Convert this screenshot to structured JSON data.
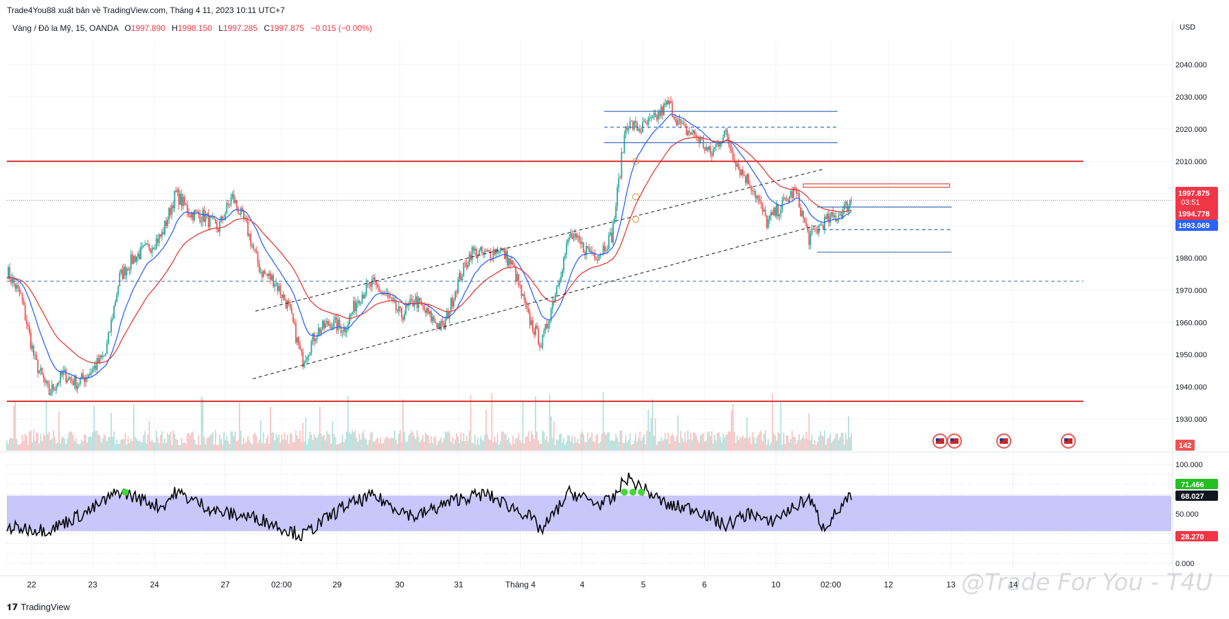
{
  "header": {
    "publisher_line": "Trade4You88 xuất bản về TradingView.com, Tháng 4 11, 2023 10:11 UTC+7"
  },
  "legend": {
    "symbol": "Vàng / Đô la Mỹ, 15, OANDA",
    "o_label": "O",
    "o_value": "1997.890",
    "h_label": "H",
    "h_value": "1998.150",
    "l_label": "L",
    "l_value": "1997.285",
    "c_label": "C",
    "c_value": "1997.875",
    "change": "−0.015 (−0.00%)"
  },
  "currency": "USD",
  "watermark": "@Trade For You - T4U",
  "brand": "TradingView",
  "colors": {
    "up": "#26a69a",
    "down": "#ef5350",
    "ema_fast": "#2962ff",
    "ema_slow": "#e53935",
    "level_red": "#d32f2f",
    "level_blue": "#3f6fb5",
    "rsi_band": "#c9c6fb",
    "rsi_line": "#000000"
  },
  "chart_data": [
    {
      "type": "candlestick",
      "title": "",
      "instrument": "XAUUSD",
      "timeframe": "15",
      "ylim": [
        1927,
        2046
      ],
      "y_ticks": [
        "2040.000",
        "2030.000",
        "2020.000",
        "2010.000",
        "2000.000",
        "1990.000",
        "1980.000",
        "1970.000",
        "1960.000",
        "1950.000",
        "1940.000",
        "1930.000"
      ],
      "x_ticks": [
        "22",
        "23",
        "24",
        "27",
        "02:00",
        "29",
        "30",
        "31",
        "Tháng 4",
        "4",
        "5",
        "6",
        "10",
        "02:00",
        "12",
        "13",
        "14"
      ],
      "price_path": [
        {
          "t": 0,
          "p": 1976
        },
        {
          "t": 1,
          "p": 1968
        },
        {
          "t": 2,
          "p": 1948
        },
        {
          "t": 3,
          "p": 1938
        },
        {
          "t": 4,
          "p": 1944
        },
        {
          "t": 5,
          "p": 1941
        },
        {
          "t": 6,
          "p": 1945
        },
        {
          "t": 7,
          "p": 1950
        },
        {
          "t": 8,
          "p": 1974
        },
        {
          "t": 9,
          "p": 1980
        },
        {
          "t": 10,
          "p": 1983
        },
        {
          "t": 11,
          "p": 1987
        },
        {
          "t": 12,
          "p": 2000
        },
        {
          "t": 13,
          "p": 1994
        },
        {
          "t": 14,
          "p": 1993
        },
        {
          "t": 15,
          "p": 1989
        },
        {
          "t": 16,
          "p": 1999
        },
        {
          "t": 17,
          "p": 1990
        },
        {
          "t": 18,
          "p": 1976
        },
        {
          "t": 19,
          "p": 1973
        },
        {
          "t": 20,
          "p": 1965
        },
        {
          "t": 21,
          "p": 1948
        },
        {
          "t": 22,
          "p": 1957
        },
        {
          "t": 23,
          "p": 1960
        },
        {
          "t": 24,
          "p": 1958
        },
        {
          "t": 25,
          "p": 1968
        },
        {
          "t": 26,
          "p": 1972
        },
        {
          "t": 27,
          "p": 1968
        },
        {
          "t": 28,
          "p": 1962
        },
        {
          "t": 29,
          "p": 1967
        },
        {
          "t": 30,
          "p": 1962
        },
        {
          "t": 31,
          "p": 1958
        },
        {
          "t": 32,
          "p": 1972
        },
        {
          "t": 33,
          "p": 1982
        },
        {
          "t": 34,
          "p": 1981
        },
        {
          "t": 35,
          "p": 1983
        },
        {
          "t": 36,
          "p": 1977
        },
        {
          "t": 37,
          "p": 1962
        },
        {
          "t": 38,
          "p": 1953
        },
        {
          "t": 39,
          "p": 1970
        },
        {
          "t": 40,
          "p": 1987
        },
        {
          "t": 41,
          "p": 1983
        },
        {
          "t": 42,
          "p": 1981
        },
        {
          "t": 43,
          "p": 1987
        },
        {
          "t": 44,
          "p": 2022
        },
        {
          "t": 45,
          "p": 2020
        },
        {
          "t": 46,
          "p": 2023
        },
        {
          "t": 47,
          "p": 2028
        },
        {
          "t": 48,
          "p": 2020
        },
        {
          "t": 49,
          "p": 2018
        },
        {
          "t": 50,
          "p": 2012
        },
        {
          "t": 51,
          "p": 2019
        },
        {
          "t": 52,
          "p": 2008
        },
        {
          "t": 53,
          "p": 2002
        },
        {
          "t": 54,
          "p": 1991
        },
        {
          "t": 55,
          "p": 1996
        },
        {
          "t": 56,
          "p": 2001
        },
        {
          "t": 57,
          "p": 1986
        },
        {
          "t": 58,
          "p": 1991
        },
        {
          "t": 59,
          "p": 1993
        },
        {
          "t": 60,
          "p": 1997.875
        }
      ],
      "last_price": "1997.875",
      "countdown": "03:51",
      "ema_fast_value": "1994.778",
      "ema_slow_value": "1993.069",
      "volume_last": "142",
      "levels": {
        "red_resistance": 2010,
        "red_support": 1935.5,
        "blue_dashed_support": 1972.8,
        "box_top": 2025.5,
        "box_mid": 2020.6,
        "box_bottom": 2015.8,
        "short_zone_top": 2003,
        "short_zone_bottom": 2002,
        "target_top": 1995.8,
        "target_mid": 1988.8,
        "target_bottom": 1981.8
      },
      "channel": {
        "upper_start": 1963.5,
        "upper_end": 2007.5,
        "lower_start": 1942.5,
        "lower_end": 1990
      }
    },
    {
      "type": "line",
      "title": "",
      "ylim": [
        0,
        100
      ],
      "y_ticks": [
        "100.000",
        "50.000",
        "0.000"
      ],
      "band": [
        32.5,
        68.5
      ],
      "band_labels": [
        "71.466",
        "68.027",
        "28.270"
      ],
      "rsi_path": [
        {
          "t": 0,
          "v": 36
        },
        {
          "t": 3,
          "v": 34
        },
        {
          "t": 6,
          "v": 54
        },
        {
          "t": 8,
          "v": 73
        },
        {
          "t": 11,
          "v": 57
        },
        {
          "t": 12,
          "v": 72
        },
        {
          "t": 15,
          "v": 52
        },
        {
          "t": 18,
          "v": 45
        },
        {
          "t": 21,
          "v": 28
        },
        {
          "t": 24,
          "v": 58
        },
        {
          "t": 26,
          "v": 68
        },
        {
          "t": 29,
          "v": 47
        },
        {
          "t": 32,
          "v": 65
        },
        {
          "t": 34,
          "v": 70
        },
        {
          "t": 37,
          "v": 49
        },
        {
          "t": 38,
          "v": 33
        },
        {
          "t": 40,
          "v": 72
        },
        {
          "t": 42,
          "v": 60
        },
        {
          "t": 43,
          "v": 63
        },
        {
          "t": 44,
          "v": 87
        },
        {
          "t": 47,
          "v": 58
        },
        {
          "t": 49,
          "v": 55
        },
        {
          "t": 51,
          "v": 38
        },
        {
          "t": 53,
          "v": 52
        },
        {
          "t": 54,
          "v": 40
        },
        {
          "t": 57,
          "v": 66
        },
        {
          "t": 58,
          "v": 36
        },
        {
          "t": 60,
          "v": 68
        }
      ]
    }
  ]
}
